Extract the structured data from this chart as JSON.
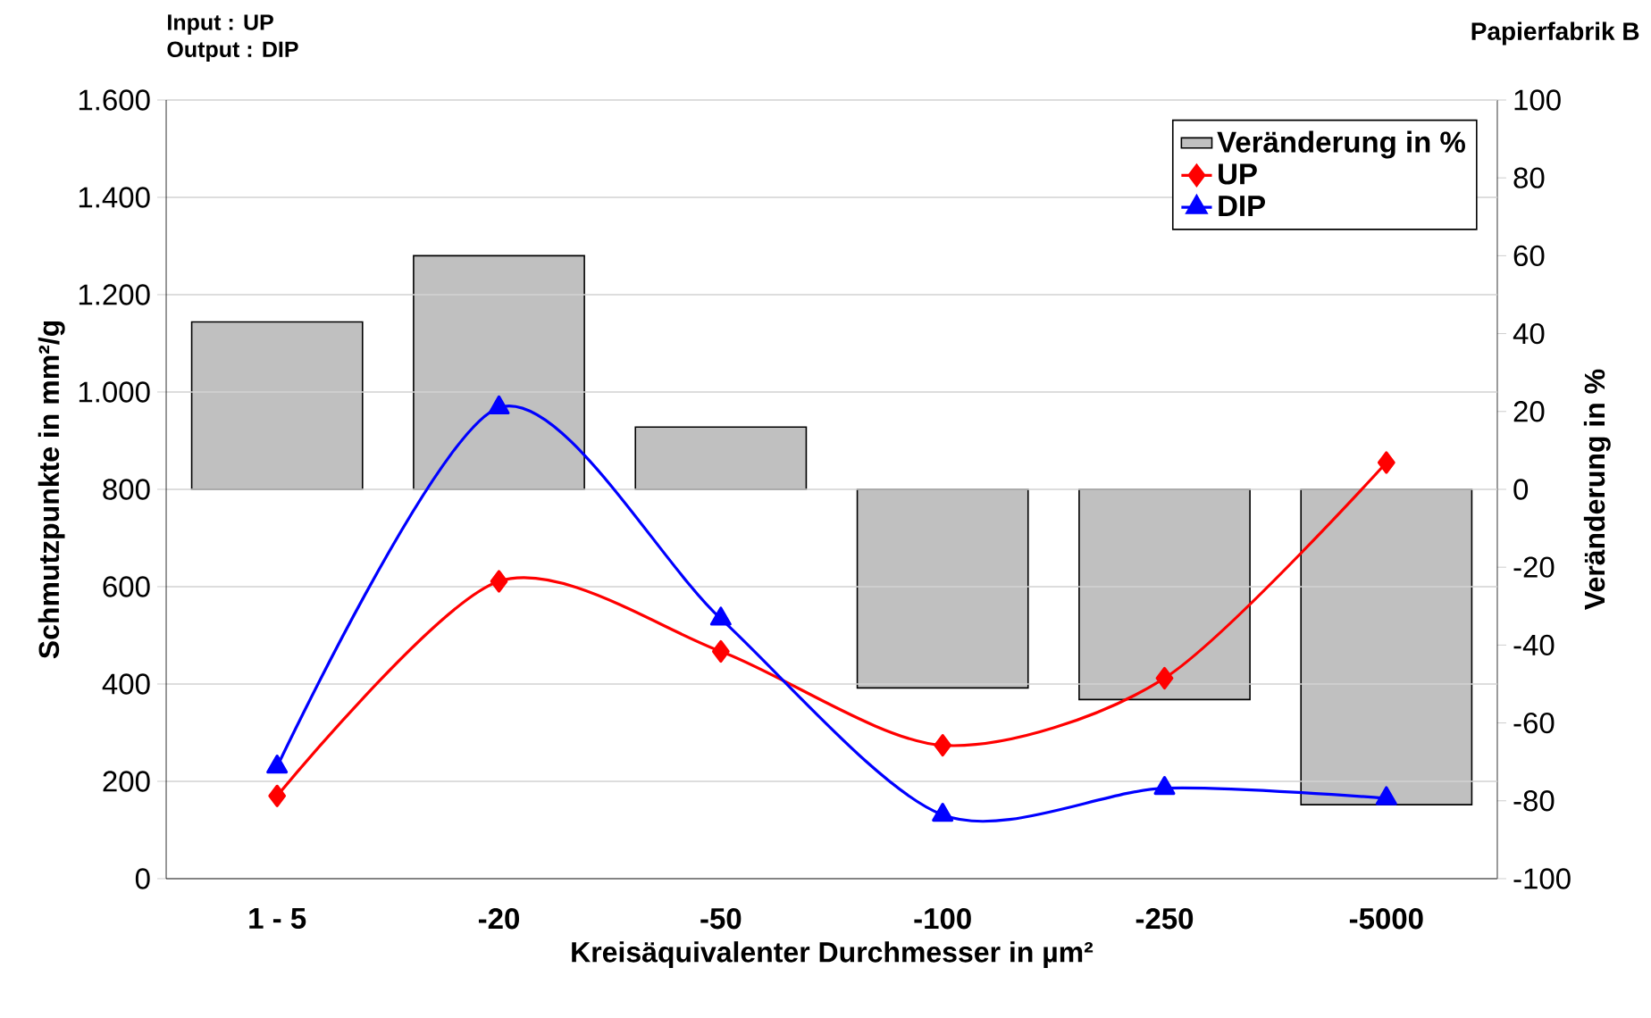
{
  "chart_data": {
    "type": "bar",
    "annotations": [
      "Input    : UP",
      "Output : DIP",
      "Papierfabrik B"
    ],
    "categories": [
      "1 - 5",
      "-20",
      "-50",
      "-100",
      "-250",
      "-5000"
    ],
    "series": [
      {
        "name": "Veränderung in %",
        "axis": "y2",
        "color": "#c0c0c0",
        "values": [
          43,
          60,
          16,
          -51,
          -54,
          -81
        ]
      },
      {
        "name": "UP",
        "type": "line",
        "marker": "diamond",
        "color": "#ff0000",
        "values": [
          170,
          611,
          467,
          274,
          412,
          855
        ]
      },
      {
        "name": "DIP",
        "type": "line",
        "marker": "triangle",
        "color": "#0000ff",
        "values": [
          230,
          968,
          534,
          131,
          186,
          165
        ]
      }
    ],
    "xlabel": "Kreisäquivalenter Durchmesser in µm²",
    "ylabel": "Schmutzpunkte in mm²/g",
    "y2label": "Veränderung in %",
    "ylim": [
      0,
      1600
    ],
    "yticks": [
      0,
      200,
      400,
      600,
      800,
      {
        "value": 1000,
        "label": "1.000"
      },
      {
        "value": 1200,
        "label": "1.200"
      },
      {
        "value": 1400,
        "label": "1.400"
      },
      {
        "value": 1600,
        "label": "1.600"
      }
    ],
    "y2lim": [
      -100,
      100
    ],
    "y2ticks": [
      -100,
      -80,
      -60,
      -40,
      -20,
      0,
      20,
      40,
      60,
      80,
      100
    ],
    "grid": "y",
    "legend": "top right"
  }
}
